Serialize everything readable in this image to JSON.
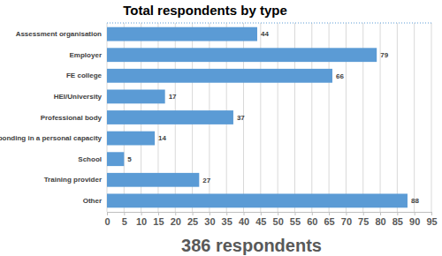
{
  "chart_data": {
    "type": "bar",
    "title": "Total respondents by type",
    "orientation": "horizontal",
    "categories": [
      "Assessment organisation",
      "Employer",
      "FE college",
      "HEI/University",
      "Professional body",
      "Responding in a personal capacity",
      "School",
      "Training provider",
      "Other"
    ],
    "values": [
      44,
      79,
      66,
      17,
      37,
      14,
      5,
      27,
      88
    ],
    "color": "#5b9bd5",
    "x_label": "386 respondents",
    "xlim": [
      0,
      95
    ],
    "xticks": [
      0,
      5,
      10,
      15,
      20,
      25,
      30,
      35,
      40,
      45,
      50,
      55,
      60,
      65,
      70,
      75,
      80,
      85,
      90,
      95
    ],
    "grid": true,
    "data_labels": true
  }
}
